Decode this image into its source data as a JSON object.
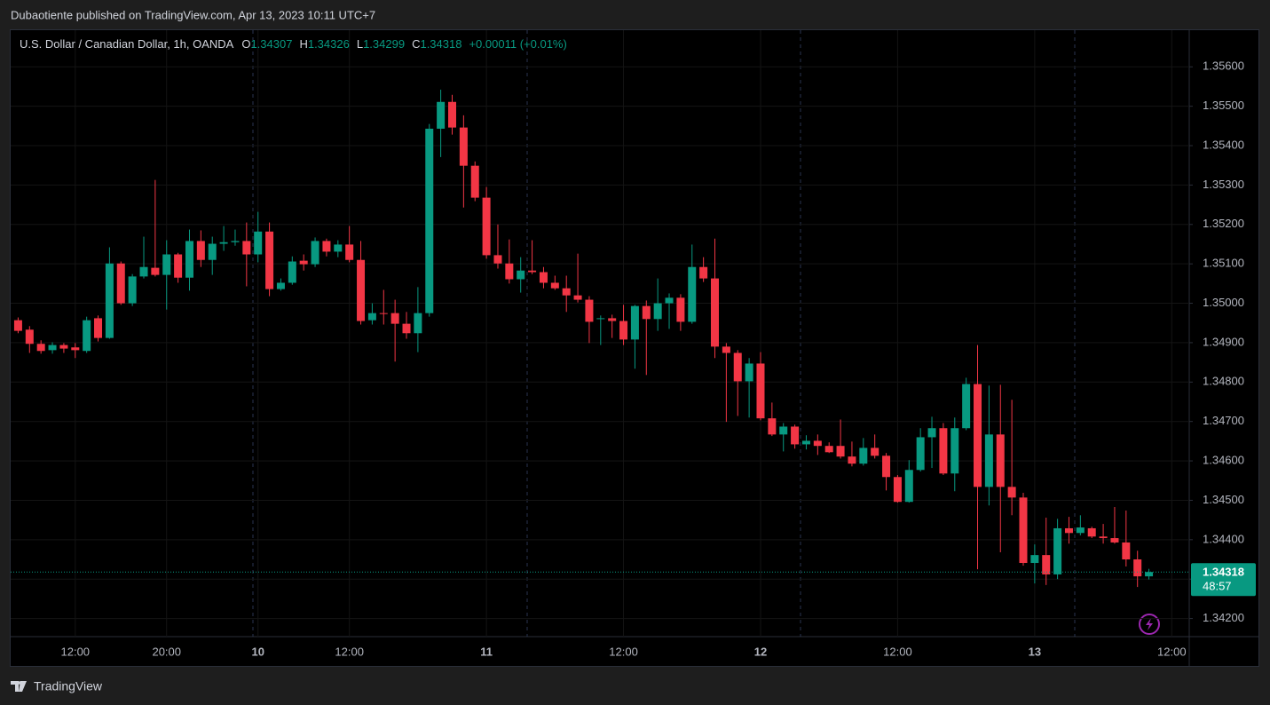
{
  "publish_note": "Dubaotiente published on TradingView.com, Apr 13, 2023 10:11 UTC+7",
  "footer": "TradingView",
  "chart_data": {
    "type": "candlestick",
    "title": "U.S. Dollar / Canadian Dollar, 1h, OANDA",
    "ohlc_labels": [
      "O",
      "H",
      "L",
      "C"
    ],
    "change": "+0.00011 (+0.01%)",
    "countdown": "48:57",
    "up_color": "#089981",
    "down_color": "#f23645",
    "grid": true,
    "categories": [
      null,
      null,
      null,
      null,
      null,
      "12:00",
      null,
      null,
      null,
      null,
      null,
      null,
      null,
      "20:00",
      null,
      null,
      null,
      null,
      null,
      null,
      null,
      "10",
      null,
      null,
      null,
      null,
      null,
      null,
      null,
      "12:00",
      null,
      null,
      null,
      null,
      null,
      null,
      null,
      null,
      null,
      null,
      null,
      "11",
      null,
      null,
      null,
      null,
      null,
      null,
      null,
      null,
      null,
      null,
      null,
      "12:00",
      null,
      null,
      null,
      null,
      null,
      null,
      null,
      null,
      null,
      null,
      null,
      "12",
      null,
      null,
      null,
      null,
      null,
      null,
      null,
      null,
      null,
      null,
      null,
      "12:00",
      null,
      null,
      null,
      null,
      null,
      null,
      null,
      null,
      null,
      null,
      null,
      "13",
      null,
      null,
      null,
      null,
      null,
      null,
      null,
      null,
      null,
      null,
      null,
      "12:00"
    ],
    "open": [
      1.34957,
      1.34933,
      1.34897,
      1.34881,
      1.34894,
      1.34888,
      1.34879,
      1.34962,
      1.34912,
      1.35101,
      1.35,
      1.35068,
      1.3509,
      1.35072,
      1.35124,
      1.35065,
      1.35158,
      1.3511,
      1.35151,
      1.35155,
      1.35158,
      1.35124,
      1.35182,
      1.35036,
      1.35052,
      1.35108,
      1.35099,
      1.35158,
      1.35131,
      1.35149,
      1.3511,
      1.34957,
      1.34975,
      1.34975,
      1.34948,
      1.34924,
      1.34975,
      1.35443,
      1.35511,
      1.35446,
      1.35349,
      1.35268,
      1.35122,
      1.35101,
      1.35061,
      1.35083,
      1.35079,
      1.35052,
      1.35038,
      1.3502,
      1.35009,
      1.3496,
      1.34962,
      1.34955,
      1.34908,
      1.34993,
      1.3496,
      1.35,
      1.35014,
      1.34953,
      1.35092,
      1.35063,
      1.3489,
      1.34874,
      1.34802,
      1.34847,
      1.34708,
      1.34667,
      1.34687,
      1.34642,
      1.34651,
      1.34638,
      1.34638,
      1.34611,
      1.34593,
      1.34633,
      1.34613,
      1.34559,
      1.34496,
      1.34577,
      1.3466,
      1.34683,
      1.34568,
      1.34683,
      1.34795,
      1.34534,
      1.34667,
      1.34534,
      1.34507,
      1.34341,
      1.34361,
      1.34312,
      1.34429,
      1.34417,
      1.34429,
      1.34408,
      1.34404,
      1.34393,
      1.3435,
      1.34307,
      null,
      null
    ],
    "high": [
      1.34964,
      1.34942,
      1.34906,
      1.34901,
      1.34899,
      1.34899,
      1.34966,
      1.34969,
      1.35142,
      1.35106,
      1.35074,
      1.35169,
      1.35313,
      1.3516,
      1.35128,
      1.35187,
      1.35185,
      1.35169,
      1.35196,
      1.35187,
      1.35205,
      1.35232,
      1.35205,
      1.35063,
      1.35119,
      1.35124,
      1.35167,
      1.35164,
      1.3516,
      1.35196,
      1.35158,
      1.35,
      1.35034,
      1.35009,
      1.34978,
      1.35041,
      1.35455,
      1.35542,
      1.35529,
      1.35477,
      1.3536,
      1.35295,
      1.352,
      1.35162,
      1.35117,
      1.3516,
      1.35092,
      1.3507,
      1.3507,
      1.35126,
      1.35018,
      1.34969,
      1.34971,
      1.34996,
      1.34996,
      1.35007,
      1.35063,
      1.35025,
      1.35023,
      1.35149,
      1.35117,
      1.35164,
      1.34899,
      1.34881,
      1.34861,
      1.34876,
      1.34748,
      1.34696,
      1.34692,
      1.34665,
      1.34667,
      1.34647,
      1.34705,
      1.34649,
      1.34658,
      1.34667,
      1.3462,
      1.34564,
      1.34602,
      1.34683,
      1.34712,
      1.34696,
      1.3471,
      1.34811,
      1.34894,
      1.34791,
      1.34793,
      1.34755,
      1.34519,
      1.34388,
      1.34456,
      1.34453,
      1.34458,
      1.34462,
      1.34433,
      1.3444,
      1.34483,
      1.34474,
      1.34372,
      1.34326,
      null,
      null
    ],
    "low": [
      1.34924,
      1.34874,
      1.34872,
      1.34872,
      1.34874,
      1.34861,
      1.34874,
      1.34903,
      1.3491,
      1.34996,
      1.34993,
      1.35063,
      1.35068,
      1.34984,
      1.35052,
      1.35032,
      1.35092,
      1.35072,
      1.35133,
      1.35146,
      1.35043,
      1.35104,
      1.35018,
      1.35032,
      1.35047,
      1.35083,
      1.35092,
      1.35119,
      1.35117,
      1.35104,
      1.34946,
      1.34946,
      1.34946,
      1.34852,
      1.3491,
      1.34876,
      1.34966,
      1.35371,
      1.35428,
      1.35243,
      1.35259,
      1.35113,
      1.35088,
      1.3505,
      1.35027,
      1.35074,
      1.35038,
      1.35034,
      1.34978,
      1.35002,
      1.34899,
      1.34894,
      1.34912,
      1.34894,
      1.34834,
      1.34818,
      1.3493,
      1.34935,
      1.3493,
      1.34948,
      1.35054,
      1.34861,
      1.34699,
      1.34714,
      1.3471,
      1.34703,
      1.34663,
      1.34624,
      1.34631,
      1.34629,
      1.34615,
      1.3462,
      1.34606,
      1.34586,
      1.34588,
      1.34606,
      1.34525,
      1.34494,
      1.34494,
      1.34573,
      1.34582,
      1.34564,
      1.34523,
      1.34678,
      1.34325,
      1.34487,
      1.34368,
      1.34462,
      1.34334,
      1.34289,
      1.34285,
      1.343,
      1.3439,
      1.34411,
      1.34404,
      1.3439,
      1.3439,
      1.34332,
      1.3428,
      1.34299,
      null,
      null
    ],
    "close": [
      1.3493,
      1.34897,
      1.34879,
      1.34894,
      1.34885,
      1.34881,
      1.34957,
      1.34912,
      1.35101,
      1.35,
      1.35068,
      1.35092,
      1.35072,
      1.35124,
      1.35065,
      1.35158,
      1.3511,
      1.35151,
      1.35155,
      1.35158,
      1.35124,
      1.35182,
      1.35036,
      1.35052,
      1.35106,
      1.35099,
      1.35158,
      1.35131,
      1.35149,
      1.3511,
      1.34955,
      1.34975,
      1.34973,
      1.34948,
      1.34924,
      1.34975,
      1.35443,
      1.35511,
      1.35446,
      1.35349,
      1.35268,
      1.35122,
      1.35101,
      1.35061,
      1.35083,
      1.35079,
      1.35052,
      1.35038,
      1.3502,
      1.35009,
      1.34953,
      1.34962,
      1.34955,
      1.34908,
      1.34993,
      1.3496,
      1.35,
      1.35014,
      1.34953,
      1.35092,
      1.35063,
      1.3489,
      1.34874,
      1.34802,
      1.34847,
      1.34708,
      1.34667,
      1.34687,
      1.34642,
      1.34651,
      1.34638,
      1.34622,
      1.34611,
      1.34593,
      1.34633,
      1.34613,
      1.34559,
      1.34496,
      1.34577,
      1.3466,
      1.34683,
      1.34568,
      1.34683,
      1.34795,
      1.34534,
      1.34667,
      1.34534,
      1.34507,
      1.34341,
      1.34361,
      1.34312,
      1.34429,
      1.34417,
      1.34431,
      1.34408,
      1.34404,
      1.34393,
      1.3435,
      1.34307,
      1.34318,
      null,
      null
    ],
    "ylim": [
      1.34154,
      1.35693
    ],
    "yticks": [
      {
        "value": 1.342,
        "label": "1.34200"
      },
      {
        "value": 1.343,
        "label": "1.34300"
      },
      {
        "value": 1.344,
        "label": "1.34400"
      },
      {
        "value": 1.345,
        "label": "1.34500"
      },
      {
        "value": 1.346,
        "label": "1.34600"
      },
      {
        "value": 1.347,
        "label": "1.34700"
      },
      {
        "value": 1.348,
        "label": "1.34800"
      },
      {
        "value": 1.349,
        "label": "1.34900"
      },
      {
        "value": 1.35,
        "label": "1.35000"
      },
      {
        "value": 1.351,
        "label": "1.35100"
      },
      {
        "value": 1.352,
        "label": "1.35200"
      },
      {
        "value": 1.353,
        "label": "1.35300"
      },
      {
        "value": 1.354,
        "label": "1.35400"
      },
      {
        "value": 1.355,
        "label": "1.35500"
      },
      {
        "value": 1.356,
        "label": "1.35600"
      }
    ]
  }
}
